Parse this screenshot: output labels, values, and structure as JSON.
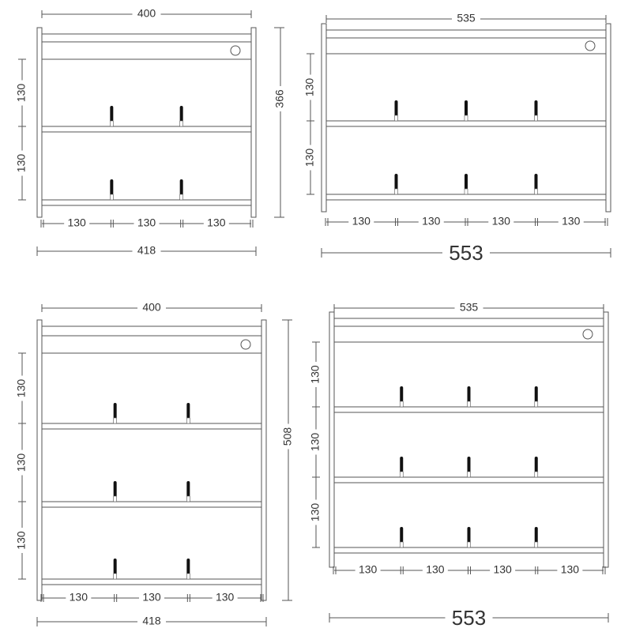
{
  "diagrams": [
    {
      "top_width": "400",
      "side_heights": [
        "130",
        "130"
      ],
      "bottom_widths": [
        "130",
        "130",
        "130"
      ],
      "total_width": "418",
      "total_height": "366"
    },
    {
      "top_width": "535",
      "side_heights": [
        "130",
        "130"
      ],
      "bottom_widths": [
        "130",
        "130",
        "130",
        "130"
      ],
      "total_width": "553"
    },
    {
      "top_width": "400",
      "side_heights": [
        "130",
        "130",
        "130"
      ],
      "bottom_widths": [
        "130",
        "130",
        "130"
      ],
      "total_width": "418",
      "total_height": "508"
    },
    {
      "top_width": "535",
      "side_heights": [
        "130",
        "130",
        "130"
      ],
      "bottom_widths": [
        "130",
        "130",
        "130",
        "130"
      ],
      "total_width": "553"
    }
  ]
}
